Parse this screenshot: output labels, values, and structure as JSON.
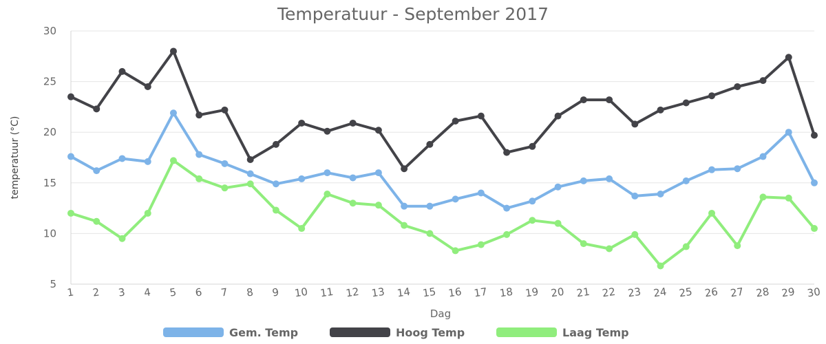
{
  "chart_data": {
    "type": "line",
    "title": "Temperatuur - September 2017",
    "xlabel": "Dag",
    "ylabel": "temperatuur (°C)",
    "ylim": [
      5,
      30
    ],
    "yticks": [
      5,
      10,
      15,
      20,
      25,
      30
    ],
    "grid": true,
    "legend_position": "bottom",
    "x": [
      1,
      2,
      3,
      4,
      5,
      6,
      7,
      8,
      9,
      10,
      11,
      12,
      13,
      14,
      15,
      16,
      17,
      18,
      19,
      20,
      21,
      22,
      23,
      24,
      25,
      26,
      27,
      28,
      29,
      30
    ],
    "series": [
      {
        "name": "Gem. Temp",
        "color": "#7db3e8",
        "values": [
          17.6,
          16.2,
          17.4,
          17.1,
          21.9,
          17.8,
          16.9,
          15.9,
          14.9,
          15.4,
          16.0,
          15.5,
          16.0,
          12.7,
          12.7,
          13.4,
          14.0,
          12.5,
          13.2,
          14.6,
          15.2,
          15.4,
          13.7,
          13.9,
          15.2,
          16.3,
          16.4,
          17.6,
          20.0,
          15.0
        ]
      },
      {
        "name": "Hoog Temp",
        "color": "#434348",
        "values": [
          23.5,
          22.3,
          26.0,
          24.5,
          28.0,
          21.7,
          22.2,
          17.3,
          18.8,
          20.9,
          20.1,
          20.9,
          20.2,
          16.4,
          18.8,
          21.1,
          21.6,
          18.0,
          18.6,
          21.6,
          23.2,
          23.2,
          20.8,
          22.2,
          22.9,
          23.6,
          24.5,
          25.1,
          27.4,
          19.7
        ]
      },
      {
        "name": "Laag Temp",
        "color": "#90ed7d",
        "values": [
          12.0,
          11.2,
          9.5,
          12.0,
          17.2,
          15.4,
          14.5,
          14.9,
          12.3,
          10.5,
          13.9,
          13.0,
          12.8,
          10.8,
          10.0,
          8.3,
          8.9,
          9.9,
          11.3,
          11.0,
          9.0,
          8.5,
          9.9,
          6.8,
          8.7,
          12.0,
          8.8,
          13.6,
          13.5,
          10.5
        ]
      }
    ]
  }
}
